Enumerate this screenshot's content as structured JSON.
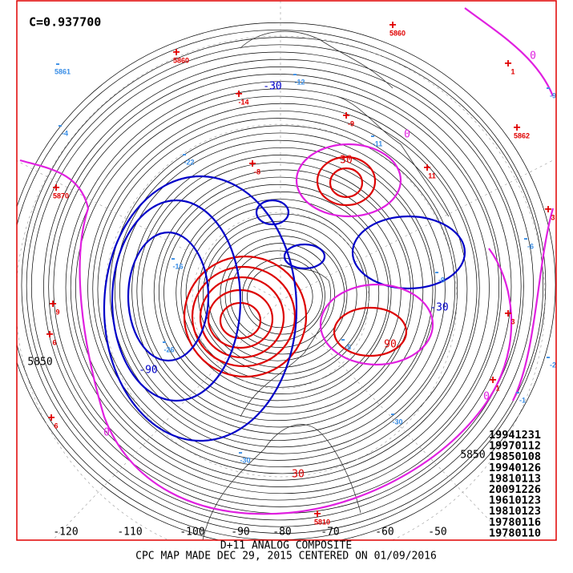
{
  "header": {
    "correlation": "C=0.937700"
  },
  "analog_dates": [
    "19941231",
    "19970112",
    "19850108",
    "19940126",
    "19810113",
    "20091226",
    "19610123",
    "19810123",
    "19780116",
    "19780110"
  ],
  "footer": {
    "line1": "D+11 ANALOG COMPOSITE",
    "line2": "CPC MAP MADE DEC 29, 2015 CENTERED ON 01/09/2016"
  },
  "longitude_labels": [
    "-120",
    "-110",
    "-100",
    "-90",
    "-80",
    "-70",
    "-60",
    "-50"
  ],
  "contour_labels": [
    {
      "text": "5850",
      "kind": "height"
    },
    {
      "text": "5850",
      "kind": "height"
    },
    {
      "text": "0",
      "kind": "zero"
    },
    {
      "text": "0",
      "kind": "zero"
    },
    {
      "text": "0",
      "kind": "zero"
    },
    {
      "text": "0",
      "kind": "zero"
    },
    {
      "text": "-90",
      "kind": "negative"
    },
    {
      "text": "-30",
      "kind": "negative"
    },
    {
      "text": "-30",
      "kind": "negative"
    },
    {
      "text": "30",
      "kind": "positive"
    },
    {
      "text": "30",
      "kind": "positive"
    },
    {
      "text": "90",
      "kind": "positive"
    }
  ],
  "station_markers": [
    {
      "sign": "+",
      "value": "5860"
    },
    {
      "sign": "+",
      "value": "5860"
    },
    {
      "sign": "+",
      "value": "1"
    },
    {
      "sign": "+",
      "value": "-14"
    },
    {
      "sign": "+",
      "value": "-9"
    },
    {
      "sign": "+",
      "value": "-8"
    },
    {
      "sign": "+",
      "value": "11"
    },
    {
      "sign": "+",
      "value": "5862"
    },
    {
      "sign": "+",
      "value": "5870"
    },
    {
      "sign": "+",
      "value": "3"
    },
    {
      "sign": "+",
      "value": "9"
    },
    {
      "sign": "+",
      "value": "6"
    },
    {
      "sign": "+",
      "value": "3"
    },
    {
      "sign": "+",
      "value": "1"
    },
    {
      "sign": "+",
      "value": "6"
    },
    {
      "sign": "+",
      "value": "5810"
    },
    {
      "sign": "-",
      "value": "5861"
    },
    {
      "sign": "-",
      "value": "-4"
    },
    {
      "sign": "-",
      "value": "-12"
    },
    {
      "sign": "-",
      "value": "-22"
    },
    {
      "sign": "-",
      "value": "-11"
    },
    {
      "sign": "-",
      "value": "-9"
    },
    {
      "sign": "-",
      "value": "-6"
    },
    {
      "sign": "-",
      "value": "-16"
    },
    {
      "sign": "-",
      "value": "-9"
    },
    {
      "sign": "-",
      "value": "-26"
    },
    {
      "sign": "-",
      "value": "-5"
    },
    {
      "sign": "-",
      "value": "-30"
    },
    {
      "sign": "-",
      "value": "-30"
    },
    {
      "sign": "-",
      "value": "-1"
    },
    {
      "sign": "-",
      "value": "-2"
    }
  ]
}
